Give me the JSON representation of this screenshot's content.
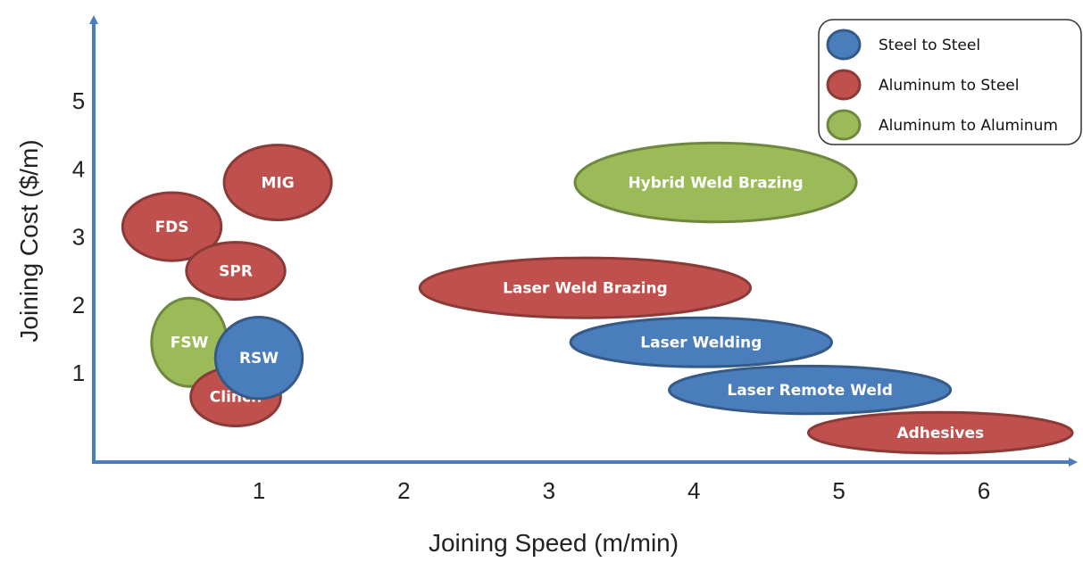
{
  "chart_data": {
    "type": "scatter",
    "xlabel": "Joining Speed (m/min)",
    "ylabel": "Joining Cost ($/m)",
    "x_ticks": [
      "1",
      "2",
      "3",
      "4",
      "5",
      "6"
    ],
    "y_ticks": [
      "1",
      "2",
      "3",
      "4",
      "5"
    ],
    "legend": [
      {
        "label": "Steel to Steel",
        "color": "#4a7dbb"
      },
      {
        "label": "Aluminum to Steel",
        "color": "#c0504d"
      },
      {
        "label": "Aluminum to Aluminum",
        "color": "#9bbb59"
      }
    ],
    "legend_position": "top-right",
    "series": [
      {
        "name": "Aluminum to Aluminum",
        "color": "#9bbb59",
        "points": [
          {
            "label": "Hybrid Weld Brazing",
            "x": 4.15,
            "y": 3.8,
            "rx": 0.97,
            "ry": 0.58
          },
          {
            "label": "FSW",
            "x": 0.52,
            "y": 1.45,
            "rx": 0.26,
            "ry": 0.65
          }
        ]
      },
      {
        "name": "Aluminum to Steel",
        "color": "#c0504d",
        "points": [
          {
            "label": "MIG",
            "x": 1.13,
            "y": 3.8,
            "rx": 0.37,
            "ry": 0.55
          },
          {
            "label": "FDS",
            "x": 0.4,
            "y": 3.15,
            "rx": 0.34,
            "ry": 0.5
          },
          {
            "label": "SPR",
            "x": 0.84,
            "y": 2.5,
            "rx": 0.34,
            "ry": 0.42
          },
          {
            "label": "Laser Weld Brazing",
            "x": 3.25,
            "y": 2.25,
            "rx": 1.14,
            "ry": 0.44
          },
          {
            "label": "Clinch",
            "x": 0.84,
            "y": 0.65,
            "rx": 0.31,
            "ry": 0.43
          },
          {
            "label": "Adhesives",
            "x": 5.7,
            "y": 0.12,
            "rx": 0.91,
            "ry": 0.3
          }
        ]
      },
      {
        "name": "Steel to Steel",
        "color": "#4a7dbb",
        "points": [
          {
            "label": "RSW",
            "x": 1.0,
            "y": 1.22,
            "rx": 0.3,
            "ry": 0.6
          },
          {
            "label": "Laser Welding",
            "x": 4.05,
            "y": 1.45,
            "rx": 0.9,
            "ry": 0.36
          },
          {
            "label": "Laser Remote Weld",
            "x": 4.8,
            "y": 0.75,
            "rx": 0.97,
            "ry": 0.35
          }
        ]
      }
    ]
  }
}
